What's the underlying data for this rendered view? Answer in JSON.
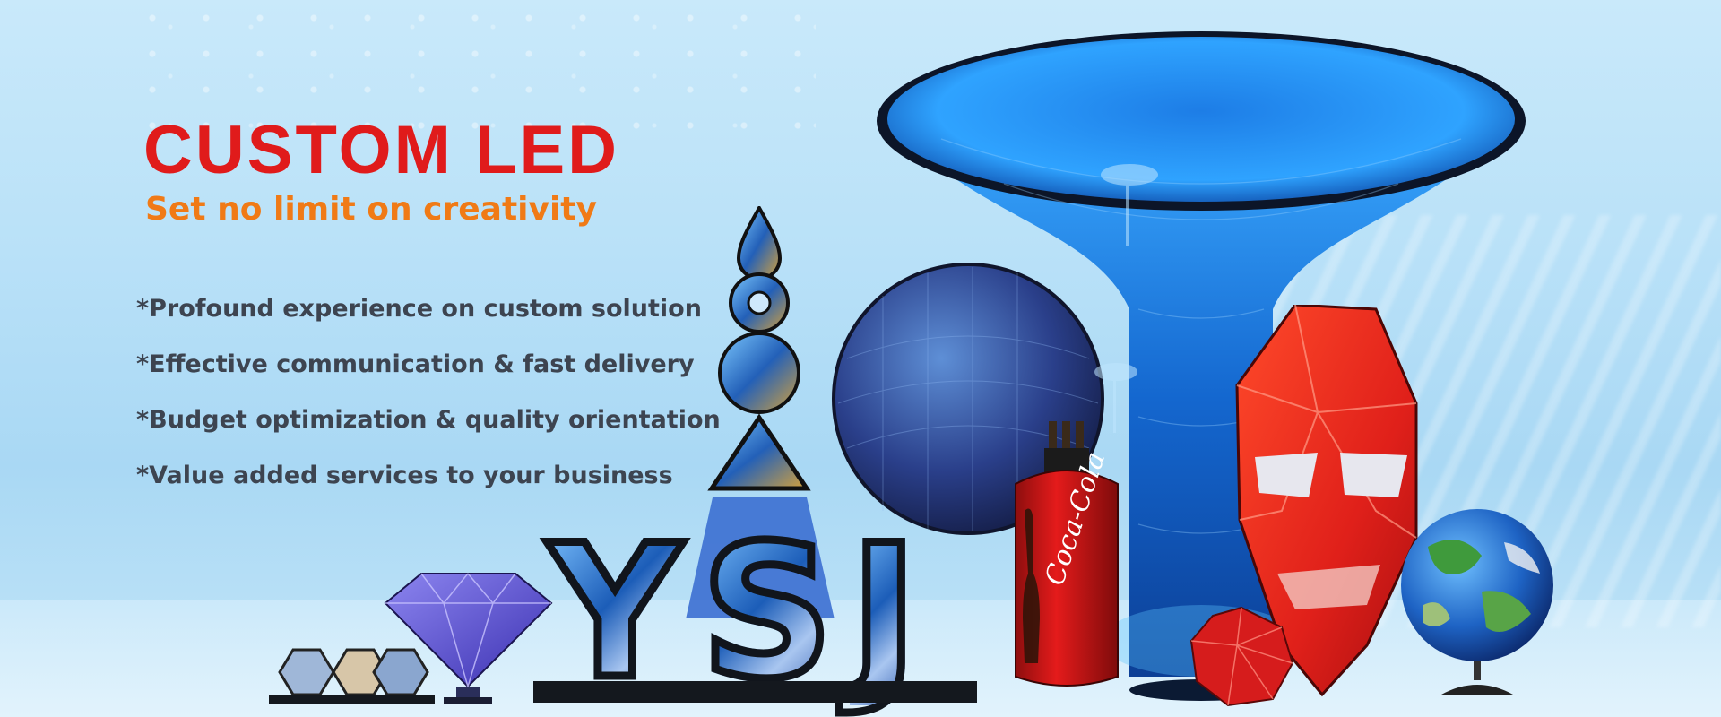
{
  "banner": {
    "title": "CUSTOM LED",
    "subtitle": "Set no limit on creativity",
    "features": [
      "*Profound experience on custom solution",
      "*Effective communication & fast delivery",
      "*Budget optimization & quality orientation",
      "*Value added services to your business"
    ]
  },
  "products": {
    "letters": [
      "Y",
      "S",
      "J"
    ],
    "can_logo": "Coca-Cola"
  },
  "colors": {
    "title": "#e01b1b",
    "subtitle": "#f07a16",
    "features": "#3d4450",
    "background": "#b9e1f8"
  }
}
